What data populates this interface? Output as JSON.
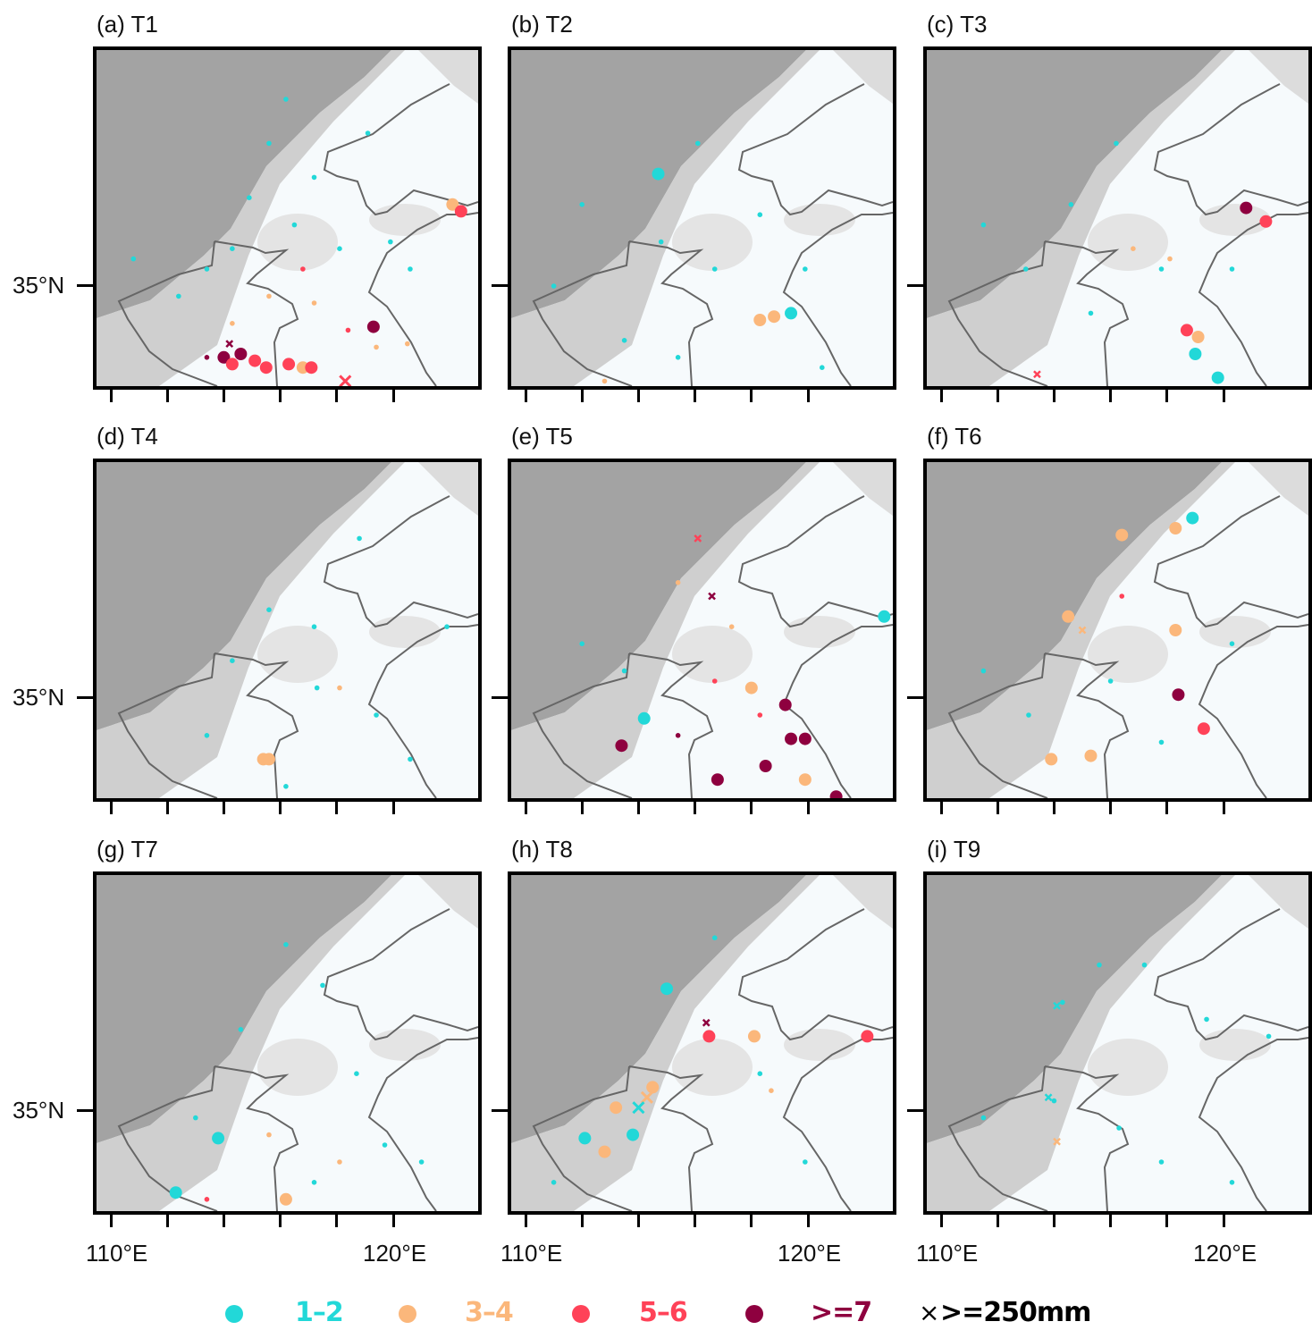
{
  "colors": {
    "1-2": "#22d8d8",
    "3-4": "#fbb77b",
    "5-6": "#ff4258",
    ">=7": "#8e003f",
    "x": "#000000"
  },
  "axes": {
    "lat_label": "35°N",
    "lon_labels": [
      "110°E",
      "120°E"
    ]
  },
  "legend": [
    {
      "cat": "1-2",
      "label": "1–2"
    },
    {
      "cat": "3-4",
      "label": "3–4"
    },
    {
      "cat": "5-6",
      "label": "5–6"
    },
    {
      "cat": ">=7",
      "label": ">=7"
    },
    {
      "cat": "x",
      "label": ">=250mm",
      "icon": "cross-icon"
    }
  ],
  "point_fields": [
    "lon",
    "lat",
    "category",
    "size",
    "marker"
  ],
  "panels": [
    {
      "title": "(a) T1",
      "points": [
        [
          114.0,
          32.9,
          ">=7",
          "L",
          "dot"
        ],
        [
          114.6,
          33.0,
          ">=7",
          "L",
          "dot"
        ],
        [
          114.3,
          32.7,
          "5-6",
          "L",
          "dot"
        ],
        [
          115.1,
          32.8,
          "5-6",
          "L",
          "dot"
        ],
        [
          115.5,
          32.6,
          "5-6",
          "L",
          "dot"
        ],
        [
          116.3,
          32.7,
          "5-6",
          "L",
          "dot"
        ],
        [
          116.8,
          32.6,
          "3-4",
          "L",
          "dot"
        ],
        [
          117.1,
          32.6,
          "5-6",
          "L",
          "dot"
        ],
        [
          119.3,
          33.8,
          ">=7",
          "L",
          "dot"
        ],
        [
          122.1,
          37.4,
          "3-4",
          "L",
          "dot"
        ],
        [
          122.4,
          37.2,
          "5-6",
          "L",
          "dot"
        ],
        [
          116.2,
          40.5,
          "1-2",
          "S",
          "dot"
        ],
        [
          115.6,
          39.2,
          "1-2",
          "S",
          "dot"
        ],
        [
          114.9,
          37.6,
          "1-2",
          "S",
          "dot"
        ],
        [
          117.2,
          38.2,
          "1-2",
          "S",
          "dot"
        ],
        [
          113.4,
          35.5,
          "1-2",
          "S",
          "dot"
        ],
        [
          112.4,
          34.7,
          "1-2",
          "S",
          "dot"
        ],
        [
          119.1,
          39.5,
          "1-2",
          "S",
          "dot"
        ],
        [
          110.8,
          35.8,
          "1-2",
          "S",
          "dot"
        ],
        [
          116.5,
          36.8,
          "1-2",
          "S",
          "dot"
        ],
        [
          114.3,
          36.1,
          "1-2",
          "S",
          "dot"
        ],
        [
          118.1,
          36.1,
          "1-2",
          "S",
          "dot"
        ],
        [
          120.6,
          35.5,
          "1-2",
          "S",
          "dot"
        ],
        [
          119.9,
          36.3,
          "1-2",
          "S",
          "dot"
        ],
        [
          115.6,
          34.7,
          "3-4",
          "S",
          "dot"
        ],
        [
          117.2,
          34.5,
          "3-4",
          "S",
          "dot"
        ],
        [
          114.3,
          33.9,
          "3-4",
          "S",
          "dot"
        ],
        [
          119.4,
          33.2,
          "3-4",
          "S",
          "dot"
        ],
        [
          120.5,
          33.3,
          "3-4",
          "S",
          "dot"
        ],
        [
          116.8,
          35.5,
          "5-6",
          "S",
          "dot"
        ],
        [
          118.4,
          33.7,
          "5-6",
          "S",
          "dot"
        ],
        [
          113.4,
          32.9,
          ">=7",
          "S",
          "dot"
        ],
        [
          118.3,
          32.2,
          "5-6",
          "L",
          "x"
        ],
        [
          114.2,
          33.3,
          ">=7",
          "S",
          "x"
        ]
      ]
    },
    {
      "title": "(b) T2",
      "points": [
        [
          114.7,
          38.3,
          "1-2",
          "L",
          "dot"
        ],
        [
          118.3,
          34.0,
          "3-4",
          "L",
          "dot"
        ],
        [
          118.8,
          34.1,
          "3-4",
          "L",
          "dot"
        ],
        [
          119.4,
          34.2,
          "1-2",
          "L",
          "dot"
        ],
        [
          116.7,
          35.5,
          "1-2",
          "S",
          "dot"
        ],
        [
          114.8,
          36.3,
          "1-2",
          "S",
          "dot"
        ],
        [
          113.5,
          33.4,
          "1-2",
          "S",
          "dot"
        ],
        [
          116.1,
          39.2,
          "1-2",
          "S",
          "dot"
        ],
        [
          118.3,
          37.1,
          "1-2",
          "S",
          "dot"
        ],
        [
          111.0,
          35.0,
          "1-2",
          "S",
          "dot"
        ],
        [
          119.9,
          35.5,
          "1-2",
          "S",
          "dot"
        ],
        [
          112.0,
          37.4,
          "1-2",
          "S",
          "dot"
        ],
        [
          115.4,
          32.9,
          "1-2",
          "S",
          "dot"
        ],
        [
          120.5,
          32.6,
          "1-2",
          "S",
          "dot"
        ],
        [
          112.8,
          32.2,
          "3-4",
          "S",
          "dot"
        ]
      ]
    },
    {
      "title": "(c) T3",
      "points": [
        [
          120.8,
          37.3,
          ">=7",
          "L",
          "dot"
        ],
        [
          121.5,
          36.9,
          "5-6",
          "L",
          "dot"
        ],
        [
          118.7,
          33.7,
          "5-6",
          "L",
          "dot"
        ],
        [
          119.1,
          33.5,
          "3-4",
          "L",
          "dot"
        ],
        [
          119.0,
          33.0,
          "1-2",
          "L",
          "dot"
        ],
        [
          119.8,
          32.3,
          "1-2",
          "L",
          "dot"
        ],
        [
          113.4,
          32.4,
          "5-6",
          "S",
          "x"
        ],
        [
          114.6,
          37.4,
          "1-2",
          "S",
          "dot"
        ],
        [
          116.2,
          39.2,
          "1-2",
          "S",
          "dot"
        ],
        [
          117.8,
          35.5,
          "1-2",
          "S",
          "dot"
        ],
        [
          113.0,
          35.5,
          "1-2",
          "S",
          "dot"
        ],
        [
          115.3,
          34.2,
          "1-2",
          "S",
          "dot"
        ],
        [
          120.3,
          35.5,
          "1-2",
          "S",
          "dot"
        ],
        [
          111.5,
          36.8,
          "1-2",
          "S",
          "dot"
        ],
        [
          116.8,
          36.1,
          "3-4",
          "S",
          "dot"
        ],
        [
          118.1,
          35.8,
          "3-4",
          "S",
          "dot"
        ]
      ]
    },
    {
      "title": "(d) T4",
      "points": [
        [
          115.4,
          33.2,
          "3-4",
          "L",
          "dot"
        ],
        [
          115.6,
          33.2,
          "3-4",
          "L",
          "dot"
        ],
        [
          115.6,
          37.6,
          "1-2",
          "S",
          "dot"
        ],
        [
          117.2,
          37.1,
          "1-2",
          "S",
          "dot"
        ],
        [
          118.8,
          39.7,
          "1-2",
          "S",
          "dot"
        ],
        [
          114.3,
          36.1,
          "1-2",
          "S",
          "dot"
        ],
        [
          113.4,
          33.9,
          "1-2",
          "S",
          "dot"
        ],
        [
          119.4,
          34.5,
          "1-2",
          "S",
          "dot"
        ],
        [
          120.6,
          33.2,
          "1-2",
          "S",
          "dot"
        ],
        [
          117.3,
          35.3,
          "1-2",
          "S",
          "dot"
        ],
        [
          121.9,
          37.1,
          "1-2",
          "S",
          "dot"
        ],
        [
          116.2,
          32.4,
          "1-2",
          "S",
          "dot"
        ],
        [
          118.1,
          35.3,
          "3-4",
          "S",
          "dot"
        ]
      ]
    },
    {
      "title": "(e) T5",
      "points": [
        [
          119.2,
          34.8,
          ">=7",
          "L",
          "dot"
        ],
        [
          119.9,
          33.8,
          ">=7",
          "L",
          "dot"
        ],
        [
          119.4,
          33.8,
          ">=7",
          "L",
          "dot"
        ],
        [
          118.5,
          33.0,
          ">=7",
          "L",
          "dot"
        ],
        [
          116.8,
          32.6,
          ">=7",
          "L",
          "dot"
        ],
        [
          113.4,
          33.6,
          ">=7",
          "L",
          "dot"
        ],
        [
          121.0,
          32.1,
          ">=7",
          "L",
          "dot"
        ],
        [
          118.0,
          35.3,
          "3-4",
          "L",
          "dot"
        ],
        [
          119.9,
          32.6,
          "3-4",
          "L",
          "dot"
        ],
        [
          114.2,
          34.4,
          "1-2",
          "L",
          "dot"
        ],
        [
          122.7,
          37.4,
          "1-2",
          "L",
          "dot"
        ],
        [
          116.1,
          39.7,
          "5-6",
          "S",
          "x"
        ],
        [
          116.6,
          38.0,
          ">=7",
          "S",
          "x"
        ],
        [
          112.0,
          36.6,
          "1-2",
          "S",
          "dot"
        ],
        [
          113.5,
          35.8,
          "1-2",
          "S",
          "dot"
        ],
        [
          115.4,
          38.4,
          "3-4",
          "S",
          "dot"
        ],
        [
          117.3,
          37.1,
          "3-4",
          "S",
          "dot"
        ],
        [
          116.7,
          35.5,
          "5-6",
          "S",
          "dot"
        ],
        [
          118.3,
          34.5,
          "5-6",
          "S",
          "dot"
        ],
        [
          115.4,
          33.9,
          ">=7",
          "S",
          "dot"
        ]
      ]
    },
    {
      "title": "(f) T6",
      "points": [
        [
          118.9,
          40.3,
          "1-2",
          "L",
          "dot"
        ],
        [
          118.3,
          40.0,
          "3-4",
          "L",
          "dot"
        ],
        [
          116.4,
          39.8,
          "3-4",
          "L",
          "dot"
        ],
        [
          114.5,
          37.4,
          "3-4",
          "L",
          "dot"
        ],
        [
          118.3,
          37.0,
          "3-4",
          "L",
          "dot"
        ],
        [
          113.9,
          33.2,
          "3-4",
          "L",
          "dot"
        ],
        [
          115.3,
          33.3,
          "3-4",
          "L",
          "dot"
        ],
        [
          118.4,
          35.1,
          ">=7",
          "L",
          "dot"
        ],
        [
          119.3,
          34.1,
          "5-6",
          "L",
          "dot"
        ],
        [
          115.0,
          37.0,
          "3-4",
          "S",
          "x"
        ],
        [
          116.4,
          38.0,
          "5-6",
          "S",
          "dot"
        ],
        [
          111.5,
          35.8,
          "1-2",
          "S",
          "dot"
        ],
        [
          113.1,
          34.5,
          "1-2",
          "S",
          "dot"
        ],
        [
          117.8,
          33.7,
          "1-2",
          "S",
          "dot"
        ],
        [
          120.3,
          36.6,
          "1-2",
          "S",
          "dot"
        ],
        [
          116.0,
          35.5,
          "1-2",
          "S",
          "dot"
        ]
      ]
    },
    {
      "title": "(g) T7",
      "points": [
        [
          113.8,
          34.2,
          "1-2",
          "L",
          "dot"
        ],
        [
          112.3,
          32.6,
          "1-2",
          "L",
          "dot"
        ],
        [
          116.2,
          32.4,
          "3-4",
          "L",
          "dot"
        ],
        [
          116.2,
          39.9,
          "1-2",
          "S",
          "dot"
        ],
        [
          117.5,
          38.7,
          "1-2",
          "S",
          "dot"
        ],
        [
          114.6,
          37.4,
          "1-2",
          "S",
          "dot"
        ],
        [
          118.7,
          36.1,
          "1-2",
          "S",
          "dot"
        ],
        [
          113.0,
          34.8,
          "1-2",
          "S",
          "dot"
        ],
        [
          119.7,
          34.0,
          "1-2",
          "S",
          "dot"
        ],
        [
          121.0,
          33.5,
          "1-2",
          "S",
          "dot"
        ],
        [
          117.2,
          32.9,
          "1-2",
          "S",
          "dot"
        ],
        [
          115.6,
          34.3,
          "3-4",
          "S",
          "dot"
        ],
        [
          118.1,
          33.5,
          "3-4",
          "S",
          "dot"
        ],
        [
          113.4,
          32.4,
          "5-6",
          "S",
          "dot"
        ]
      ]
    },
    {
      "title": "(h) T8",
      "points": [
        [
          115.0,
          38.6,
          "1-2",
          "L",
          "dot"
        ],
        [
          112.1,
          34.2,
          "1-2",
          "L",
          "dot"
        ],
        [
          113.8,
          34.3,
          "1-2",
          "L",
          "dot"
        ],
        [
          116.5,
          37.2,
          "5-6",
          "L",
          "dot"
        ],
        [
          122.1,
          37.2,
          "5-6",
          "L",
          "dot"
        ],
        [
          118.1,
          37.2,
          "3-4",
          "L",
          "dot"
        ],
        [
          114.5,
          35.7,
          "3-4",
          "L",
          "dot"
        ],
        [
          113.2,
          35.1,
          "3-4",
          "L",
          "dot"
        ],
        [
          112.8,
          33.8,
          "3-4",
          "L",
          "dot"
        ],
        [
          114.3,
          35.4,
          "3-4",
          "L",
          "x"
        ],
        [
          114.0,
          35.1,
          "1-2",
          "L",
          "x"
        ],
        [
          116.4,
          37.6,
          ">=7",
          "S",
          "x"
        ],
        [
          116.7,
          40.1,
          "1-2",
          "S",
          "dot"
        ],
        [
          118.3,
          36.1,
          "1-2",
          "S",
          "dot"
        ],
        [
          119.9,
          33.5,
          "1-2",
          "S",
          "dot"
        ],
        [
          111.0,
          32.9,
          "1-2",
          "S",
          "dot"
        ],
        [
          118.7,
          35.6,
          "3-4",
          "S",
          "dot"
        ]
      ]
    },
    {
      "title": "(i) T9",
      "points": [
        [
          114.3,
          38.2,
          "1-2",
          "S",
          "dot"
        ],
        [
          115.6,
          39.3,
          "1-2",
          "S",
          "dot"
        ],
        [
          114.0,
          35.3,
          "1-2",
          "S",
          "dot"
        ],
        [
          117.2,
          39.3,
          "1-2",
          "S",
          "dot"
        ],
        [
          119.4,
          37.7,
          "1-2",
          "S",
          "dot"
        ],
        [
          121.6,
          37.2,
          "1-2",
          "S",
          "dot"
        ],
        [
          116.3,
          34.5,
          "1-2",
          "S",
          "dot"
        ],
        [
          117.8,
          33.5,
          "1-2",
          "S",
          "dot"
        ],
        [
          111.5,
          34.8,
          "1-2",
          "S",
          "dot"
        ],
        [
          120.3,
          32.9,
          "1-2",
          "S",
          "dot"
        ],
        [
          114.1,
          38.1,
          "1-2",
          "S",
          "x"
        ],
        [
          113.8,
          35.4,
          "1-2",
          "S",
          "x"
        ],
        [
          114.1,
          34.1,
          "3-4",
          "S",
          "x"
        ]
      ]
    }
  ]
}
